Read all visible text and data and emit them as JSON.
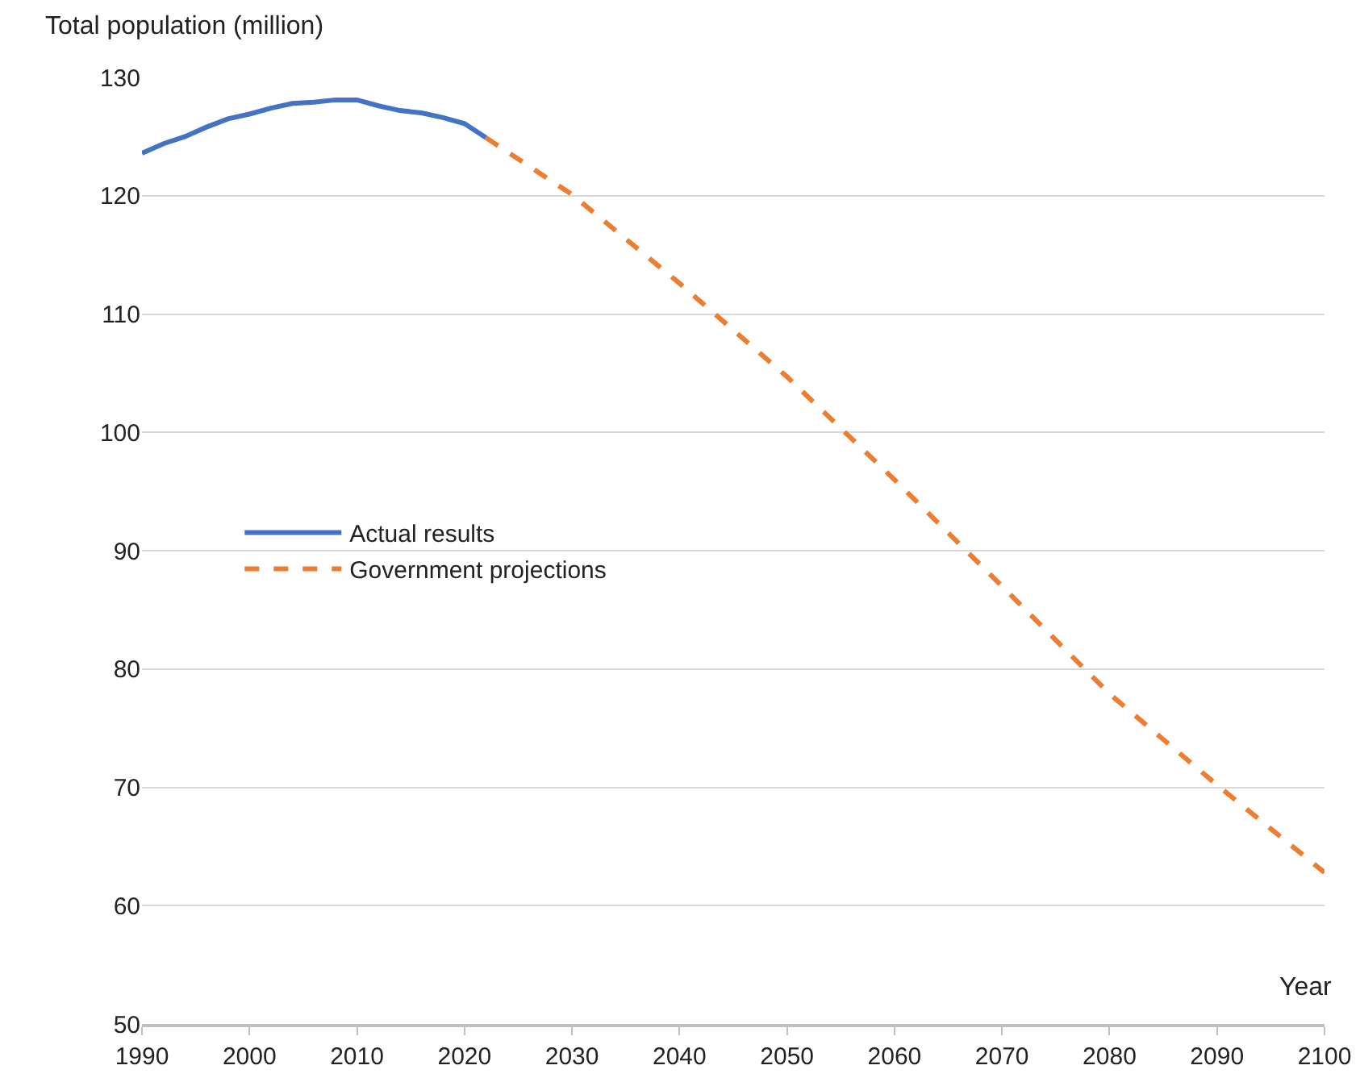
{
  "chart_data": {
    "type": "line",
    "xlabel": "Year",
    "ylabel": "Total population (million)",
    "series": [
      {
        "name": "Actual results",
        "color": "#4472c4",
        "line_style": "solid",
        "x": [
          1990,
          1992,
          1994,
          1996,
          1998,
          2000,
          2002,
          2004,
          2006,
          2008,
          2010,
          2012,
          2014,
          2016,
          2018,
          2020,
          2022
        ],
        "values": [
          123.6,
          124.4,
          125.0,
          125.8,
          126.5,
          126.9,
          127.4,
          127.8,
          127.9,
          128.1,
          128.1,
          127.6,
          127.2,
          127.0,
          126.6,
          126.1,
          124.9
        ]
      },
      {
        "name": "Government projections",
        "color": "#ed7d31",
        "line_style": "dashed",
        "x": [
          2022,
          2030,
          2040,
          2050,
          2060,
          2070,
          2080,
          2090,
          2100
        ],
        "values": [
          124.9,
          120.1,
          112.6,
          104.7,
          96.0,
          87.0,
          77.9,
          70.2,
          62.8
        ]
      }
    ],
    "xlim": [
      1990,
      2100
    ],
    "xticks": [
      1990,
      2000,
      2010,
      2020,
      2030,
      2040,
      2050,
      2060,
      2070,
      2080,
      2090,
      2100
    ],
    "ylim": [
      50,
      130
    ],
    "yticks": [
      50,
      60,
      70,
      80,
      90,
      100,
      110,
      120,
      130
    ],
    "grid": "y",
    "legend": "left",
    "marker": "none"
  }
}
